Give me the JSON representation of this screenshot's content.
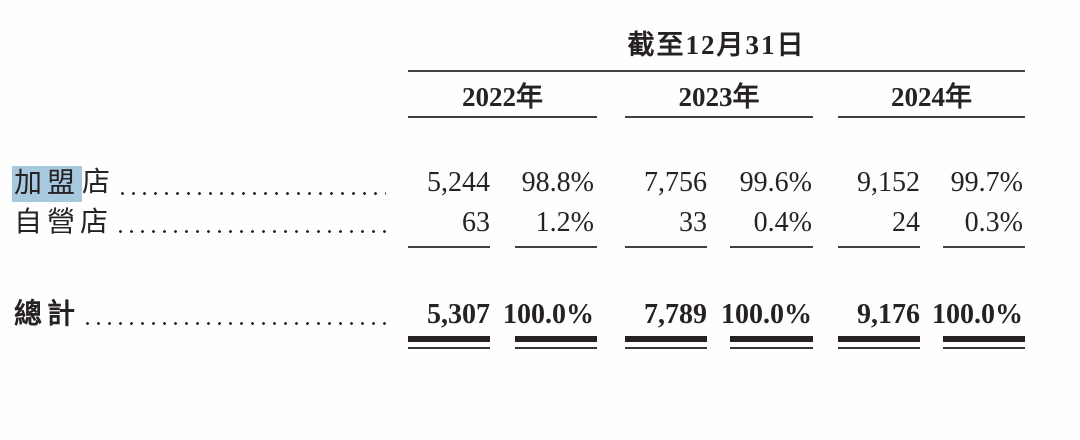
{
  "document": {
    "header": "截至12月31日",
    "years": [
      "2022年",
      "2023年",
      "2024年"
    ],
    "rows": [
      {
        "label_highlight": "加盟",
        "label_rest": "店",
        "values": [
          "5,244",
          "98.8%",
          "7,756",
          "99.6%",
          "9,152",
          "99.7%"
        ]
      },
      {
        "label": "自營店",
        "values": [
          "63",
          "1.2%",
          "33",
          "0.4%",
          "24",
          "0.3%"
        ]
      }
    ],
    "total": {
      "label": "總計",
      "values": [
        "5,307",
        "100.0%",
        "7,789",
        "100.0%",
        "9,176",
        "100.0%"
      ]
    },
    "colors": {
      "highlight": "#a6c9e0",
      "text": "#272222",
      "rule": "#453e3e"
    }
  }
}
